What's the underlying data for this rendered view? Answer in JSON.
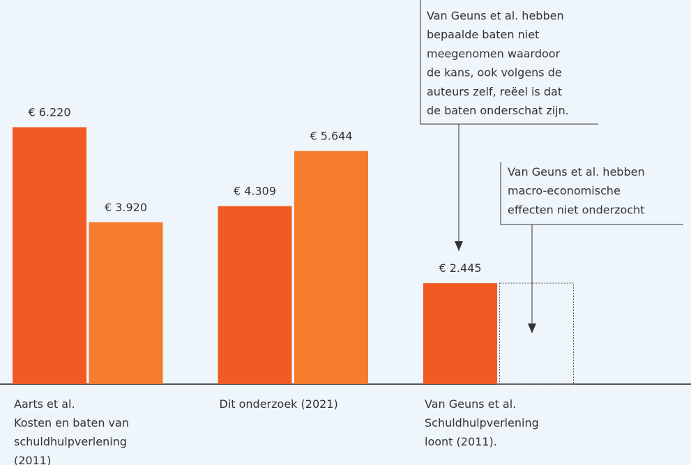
{
  "chart_data": {
    "type": "bar",
    "categories": [
      "Aarts et al.\nKosten en baten van\nschuldhulpverlening\n(2011)",
      "Dit onderzoek (2021)",
      "Van Geuns et al.\nSchuldhulpverlening\nloont (2011)."
    ],
    "series": [
      {
        "color": "#f15a22",
        "values": [
          6220,
          4309,
          2445
        ],
        "value_labels": [
          "€ 6.220",
          "€ 4.309",
          "€ 2.445"
        ]
      },
      {
        "color": "#f47c2c",
        "values": [
          3920,
          5644,
          null
        ],
        "value_labels": [
          "€ 3.920",
          "€ 5.644",
          null
        ]
      }
    ],
    "ylim": [
      0,
      9300
    ],
    "annotations": [
      {
        "text": "Van Geuns et al. hebben\nbepaalde baten niet\nmeegenomen waardoor\nde kans, ook volgens de\nauteurs zelf, reëel is dat\nde baten onderschat zijn."
      },
      {
        "text": "Van Geuns et al. hebben\nmacro-economische\neffecten niet onderzocht"
      }
    ]
  }
}
